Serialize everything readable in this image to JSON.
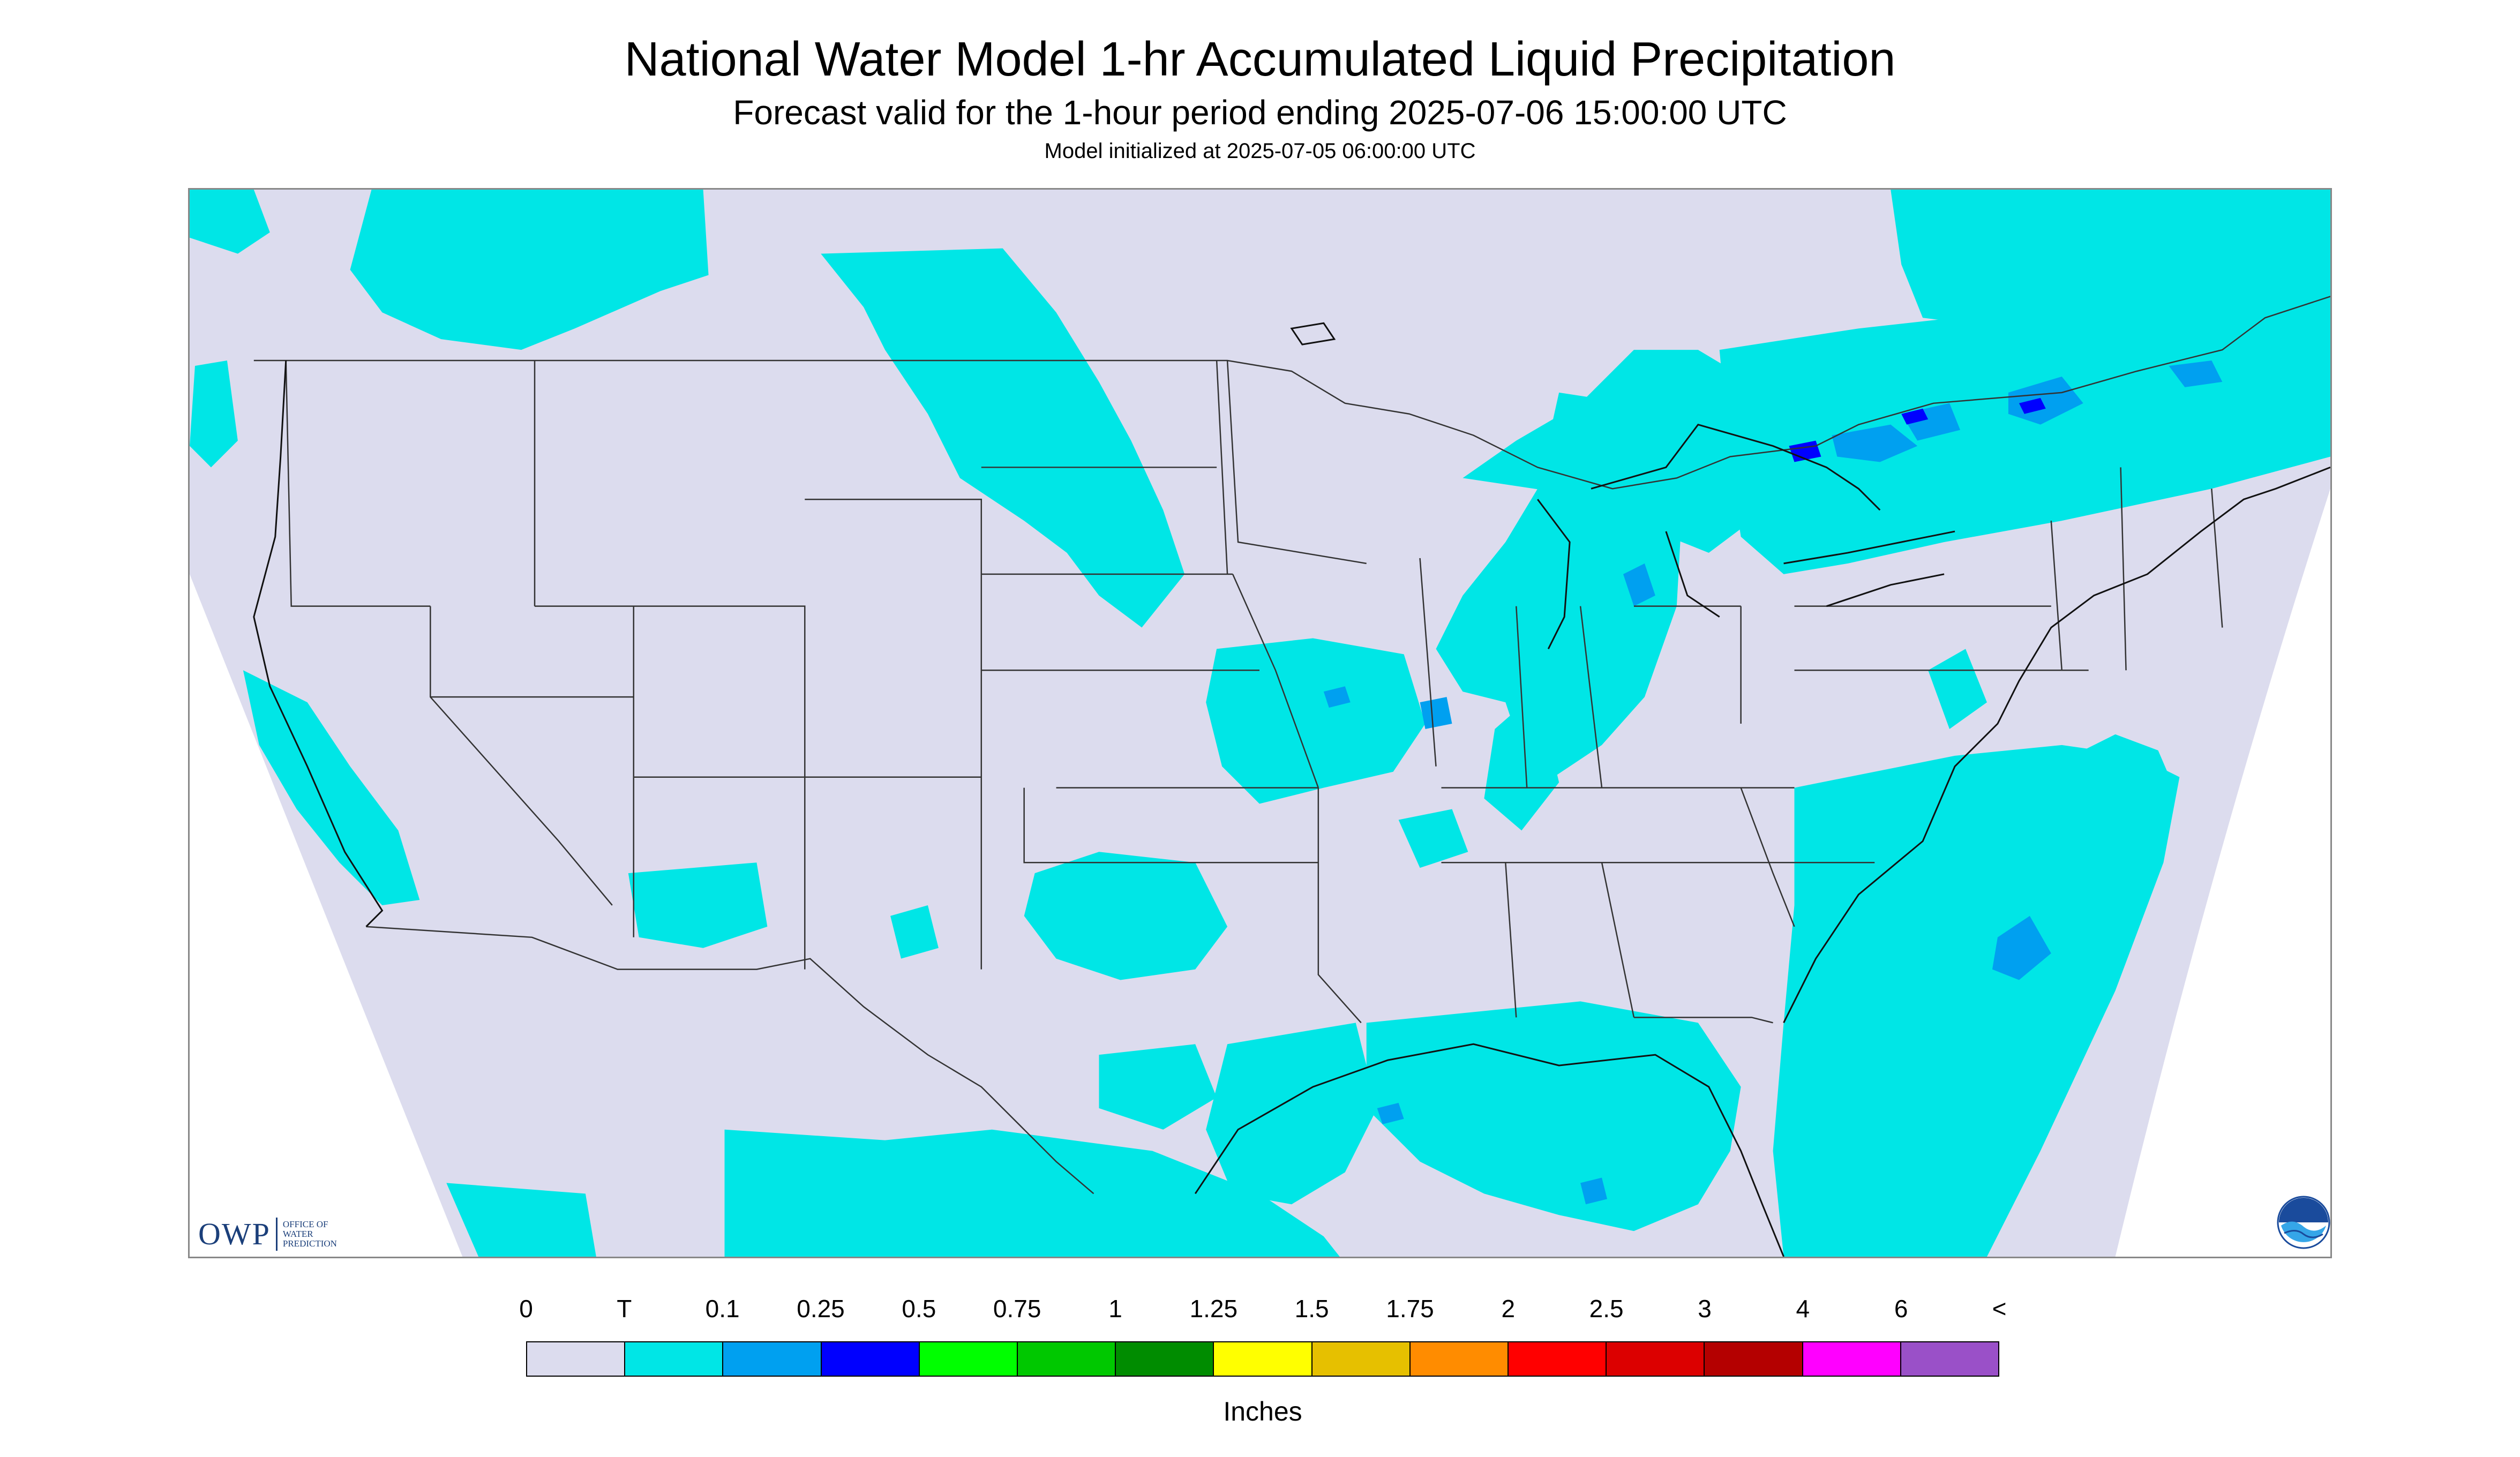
{
  "header": {
    "title": "National Water Model 1-hr Accumulated Liquid Precipitation",
    "subtitle": "Forecast valid for the 1-hour period ending 2025-07-06 15:00:00 UTC",
    "init": "Model initialized at 2025-07-05 06:00:00 UTC"
  },
  "map": {
    "background_color": "#dcdcee",
    "outside_color": "#ffffff",
    "precip_colors": {
      "trace": "#00e6e6",
      "tenth": "#00a0f0",
      "quarter": "#0000ff"
    },
    "border_color": "#333333",
    "coast_color": "#111111"
  },
  "logos": {
    "owp_text": "OWP",
    "owp_sub": "OFFICE OF WATER PREDICTION",
    "noaa_text": "NOAA"
  },
  "legend": {
    "labels": [
      "0",
      "T",
      "0.1",
      "0.25",
      "0.5",
      "0.75",
      "1",
      "1.25",
      "1.5",
      "1.75",
      "2",
      "2.5",
      "3",
      "4",
      "6",
      "<"
    ],
    "colors": [
      "#dcdcee",
      "#00e6e6",
      "#00a0f0",
      "#0000ff",
      "#00ff00",
      "#00c800",
      "#008c00",
      "#ffff00",
      "#e6c000",
      "#ff8c00",
      "#ff0000",
      "#dc0000",
      "#b40000",
      "#ff00ff",
      "#9a50c8"
    ],
    "units": "Inches"
  }
}
